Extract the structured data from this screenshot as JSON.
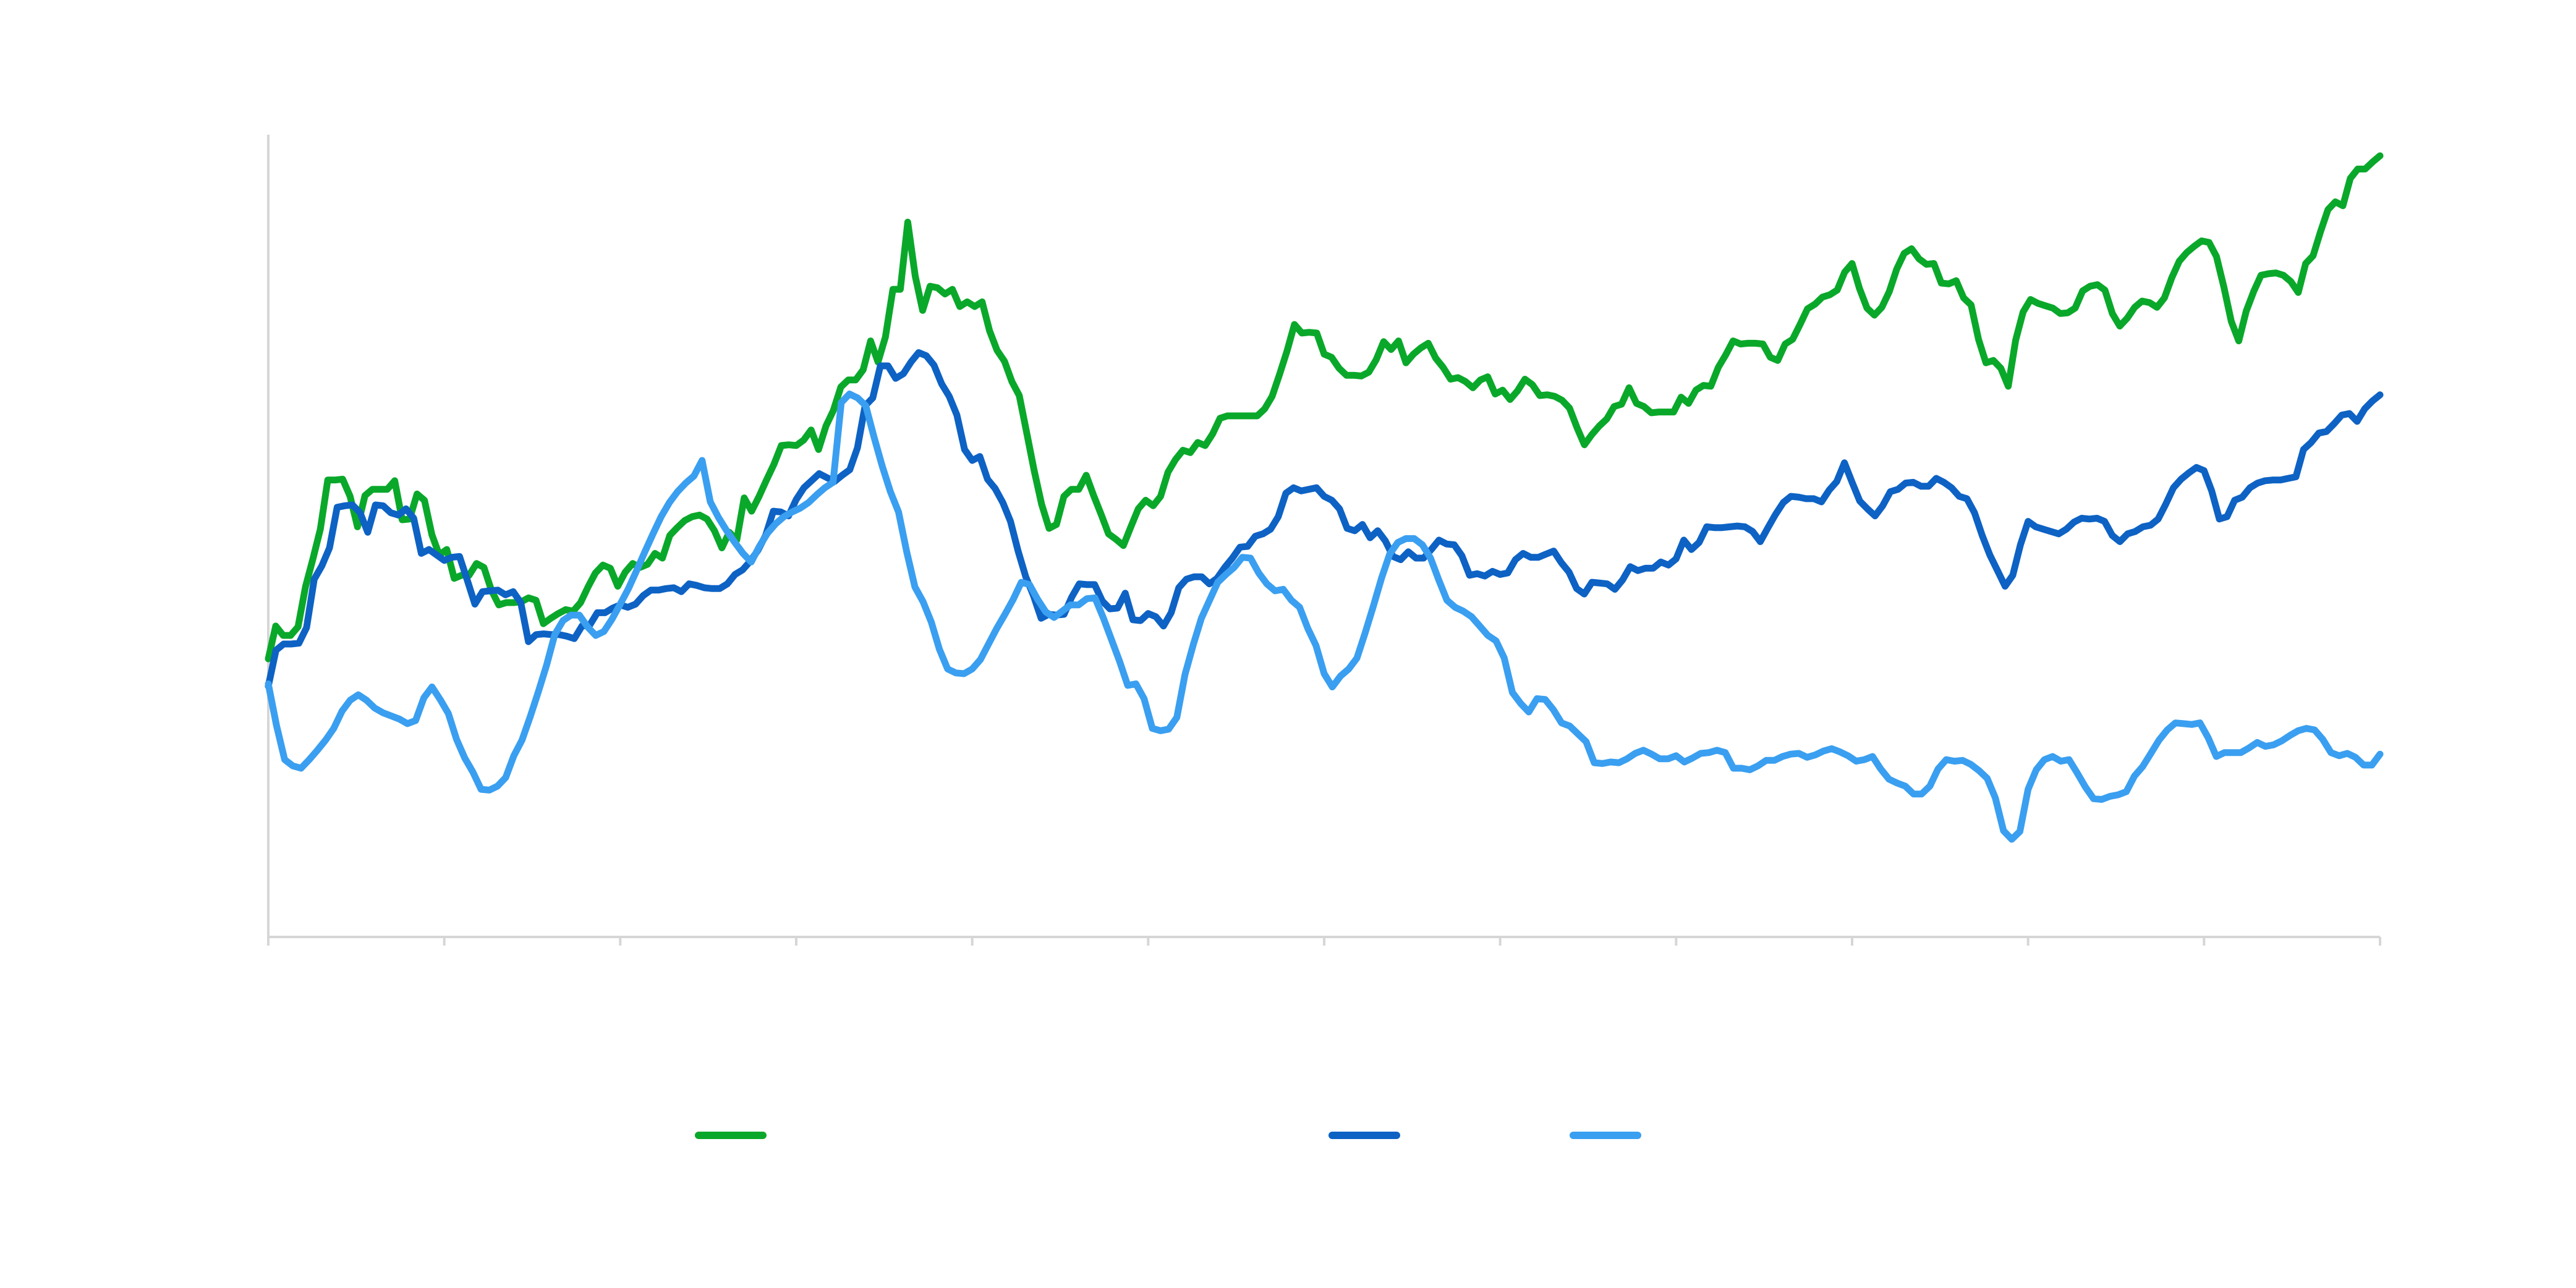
{
  "chart_data": {
    "type": "line",
    "title": "",
    "xlabel": "",
    "ylabel": "",
    "ylim": [
      0,
      100
    ],
    "grid": false,
    "legend_position": "bottom",
    "x_ticks": 12,
    "series": [
      {
        "name": "",
        "color": "#0aa82a",
        "values": [
          35.6,
          39.8,
          38.6,
          38.6,
          39.7,
          44.8,
          48.4,
          52.2,
          58.5,
          58.5,
          58.6,
          56.4,
          52.5,
          56.5,
          57.3,
          57.3,
          57.3,
          58.4,
          53.4,
          53.5,
          56.7,
          55.9,
          51.5,
          48.9,
          49.6,
          45.9,
          46.3,
          46.3,
          47.8,
          47.3,
          44.4,
          42.5,
          42.8,
          42.8,
          42.9,
          43.4,
          43.1,
          40.1,
          40.8,
          41.4,
          41.9,
          41.7,
          42.8,
          44.8,
          46.6,
          47.6,
          47.2,
          44.9,
          46.7,
          47.8,
          47.3,
          47.7,
          49.1,
          48.5,
          51.4,
          52.4,
          53.3,
          53.8,
          54.0,
          53.5,
          52.0,
          49.8,
          51.8,
          50.8,
          56.2,
          54.5,
          56.4,
          58.5,
          60.5,
          62.9,
          63.0,
          62.9,
          63.6,
          64.9,
          62.4,
          65.4,
          67.4,
          70.4,
          71.3,
          71.3,
          72.6,
          76.3,
          73.6,
          76.8,
          82.9,
          82.9,
          91.5,
          84.6,
          80.2,
          83.3,
          83.1,
          82.3,
          82.9,
          80.7,
          81.3,
          80.7,
          81.3,
          77.6,
          75.1,
          73.7,
          71.1,
          69.3,
          64.5,
          59.7,
          55.4,
          52.3,
          52.8,
          56.4,
          57.3,
          57.3,
          59.1,
          56.5,
          54.1,
          51.6,
          50.9,
          50.1,
          52.5,
          54.8,
          55.9,
          55.2,
          56.4,
          59.5,
          61.1,
          62.3,
          62.0,
          63.3,
          62.9,
          64.4,
          66.4,
          66.7,
          66.7,
          66.7,
          66.7,
          66.7,
          67.6,
          69.2,
          72.0,
          75.0,
          78.4,
          77.3,
          77.4,
          77.3,
          74.6,
          74.2,
          72.8,
          71.9,
          71.9,
          71.8,
          72.3,
          73.9,
          76.2,
          75.2,
          76.3,
          73.5,
          74.6,
          75.4,
          76.0,
          74.1,
          72.9,
          71.4,
          71.6,
          71.1,
          70.3,
          71.3,
          71.7,
          69.5,
          70.0,
          68.8,
          69.9,
          71.4,
          70.7,
          69.3,
          69.4,
          69.2,
          68.7,
          67.7,
          65.2,
          63.0,
          64.3,
          65.4,
          66.3,
          67.9,
          68.2,
          70.3,
          68.3,
          67.9,
          67.1,
          67.2,
          67.2,
          67.2,
          69.1,
          68.3,
          70.0,
          70.6,
          70.5,
          72.9,
          74.5,
          76.3,
          75.9,
          76.0,
          76.0,
          75.9,
          74.2,
          73.8,
          75.9,
          76.5,
          78.4,
          80.4,
          81.0,
          81.9,
          82.2,
          82.8,
          85.1,
          86.2,
          83.0,
          80.5,
          79.6,
          80.6,
          82.6,
          85.5,
          87.5,
          88.1,
          86.8,
          86.1,
          86.2,
          83.7,
          83.6,
          84.0,
          81.8,
          80.9,
          76.5,
          73.5,
          73.8,
          72.8,
          70.5,
          76.4,
          80.0,
          81.6,
          81.1,
          80.8,
          80.5,
          79.8,
          79.9,
          80.5,
          82.7,
          83.3,
          83.5,
          82.8,
          79.8,
          78.2,
          79.2,
          80.6,
          81.4,
          81.2,
          80.6,
          81.8,
          84.4,
          86.5,
          87.6,
          88.4,
          89.1,
          88.9,
          87.1,
          83.2,
          78.8,
          76.3,
          80.1,
          82.6,
          84.7,
          84.9,
          85.0,
          84.7,
          83.9,
          82.5,
          86.2,
          87.2,
          90.3,
          93.1,
          94.1,
          93.6,
          97.1,
          98.3,
          98.3,
          99.2,
          100.0
        ]
      },
      {
        "name": "",
        "color": "#0d62c4",
        "values": [
          32.1,
          36.7,
          37.5,
          37.5,
          37.6,
          39.6,
          45.8,
          47.5,
          49.8,
          55.0,
          55.2,
          55.3,
          54.3,
          51.8,
          55.3,
          55.2,
          54.3,
          54.0,
          54.8,
          53.6,
          49.1,
          49.6,
          48.9,
          48.2,
          48.6,
          48.7,
          45.7,
          42.6,
          44.2,
          44.3,
          44.4,
          43.8,
          44.2,
          42.8,
          37.8,
          38.7,
          38.8,
          38.7,
          38.7,
          38.5,
          38.2,
          39.8,
          39.9,
          41.5,
          41.5,
          42.1,
          42.5,
          42.2,
          42.6,
          43.7,
          44.4,
          44.4,
          44.6,
          44.7,
          44.2,
          45.2,
          45.0,
          44.7,
          44.6,
          44.6,
          45.2,
          46.4,
          47.0,
          48.1,
          49.5,
          51.4,
          54.5,
          54.4,
          53.9,
          56.0,
          57.5,
          58.4,
          59.3,
          58.8,
          58.3,
          59.1,
          59.8,
          62.6,
          68.0,
          69.0,
          73.1,
          73.1,
          71.5,
          72.1,
          73.6,
          74.8,
          74.4,
          73.2,
          70.8,
          69.2,
          66.8,
          62.4,
          61.0,
          61.5,
          58.6,
          57.4,
          55.6,
          53.2,
          49.4,
          46.1,
          43.7,
          40.8,
          41.3,
          41.2,
          41.3,
          43.5,
          45.2,
          45.1,
          45.1,
          43.0,
          42.0,
          42.1,
          44.0,
          40.6,
          40.5,
          41.4,
          41.0,
          39.8,
          41.5,
          44.7,
          45.8,
          46.1,
          46.1,
          45.2,
          45.9,
          47.3,
          48.5,
          49.9,
          50.0,
          51.3,
          51.6,
          52.2,
          53.8,
          56.8,
          57.5,
          57.1,
          57.3,
          57.5,
          56.4,
          55.9,
          54.8,
          52.3,
          52.0,
          52.8,
          51.1,
          52.0,
          50.7,
          48.7,
          48.3,
          49.3,
          48.5,
          48.5,
          49.6,
          50.8,
          50.3,
          50.2,
          48.8,
          46.3,
          46.5,
          46.2,
          46.8,
          46.4,
          46.6,
          48.3,
          49.1,
          48.6,
          48.6,
          49.0,
          49.4,
          47.9,
          46.7,
          44.6,
          43.9,
          45.4,
          45.3,
          45.2,
          44.5,
          45.7,
          47.4,
          46.9,
          47.2,
          47.2,
          48.0,
          47.6,
          48.4,
          50.8,
          49.6,
          50.5,
          52.5,
          52.4,
          52.4,
          52.5,
          52.6,
          52.5,
          51.9,
          50.6,
          52.4,
          54.1,
          55.6,
          56.4,
          56.3,
          56.1,
          56.1,
          55.7,
          57.2,
          58.3,
          60.7,
          58.2,
          55.8,
          54.8,
          53.9,
          55.2,
          57.0,
          57.3,
          58.1,
          58.2,
          57.7,
          57.7,
          58.7,
          58.2,
          57.5,
          56.4,
          56.1,
          54.3,
          51.4,
          48.9,
          46.9,
          44.9,
          46.3,
          50.2,
          53.2,
          52.5,
          52.2,
          51.9,
          51.6,
          52.2,
          53.1,
          53.6,
          53.5,
          53.6,
          53.2,
          51.4,
          50.6,
          51.6,
          51.9,
          52.5,
          52.7,
          53.5,
          55.4,
          57.5,
          58.6,
          59.4,
          60.1,
          59.7,
          57.1,
          53.5,
          53.8,
          55.9,
          56.3,
          57.5,
          58.1,
          58.4,
          58.5,
          58.5,
          58.7,
          58.9,
          62.4,
          63.3,
          64.5,
          64.7,
          65.7,
          66.8,
          67.0,
          66.0,
          67.6,
          68.6,
          69.4
        ]
      },
      {
        "name": "",
        "color": "#3a9ff0",
        "values": [
          32.4,
          27.1,
          22.7,
          21.9,
          21.6,
          22.7,
          23.9,
          25.2,
          26.7,
          28.9,
          30.3,
          31.0,
          30.3,
          29.3,
          28.7,
          28.3,
          27.9,
          27.3,
          27.7,
          30.6,
          32.0,
          30.4,
          28.6,
          25.3,
          22.9,
          21.1,
          18.9,
          18.8,
          19.3,
          20.4,
          23.2,
          25.2,
          28.2,
          31.4,
          34.8,
          38.7,
          40.5,
          41.2,
          41.2,
          39.7,
          38.6,
          39.1,
          40.7,
          42.6,
          44.6,
          46.9,
          49.3,
          51.6,
          53.8,
          55.6,
          57.0,
          58.1,
          59.0,
          61.0,
          55.7,
          53.7,
          52.0,
          50.5,
          49.1,
          48.0,
          50.0,
          51.7,
          52.9,
          53.8,
          54.4,
          54.9,
          55.6,
          56.6,
          57.5,
          58.2,
          68.4,
          69.5,
          69.0,
          68.0,
          64.0,
          60.3,
          57.0,
          54.4,
          49.3,
          44.8,
          42.9,
          40.3,
          36.8,
          34.3,
          33.8,
          33.7,
          34.3,
          35.5,
          37.5,
          39.5,
          41.3,
          43.2,
          45.4,
          45.1,
          43.2,
          41.6,
          40.9,
          41.7,
          42.5,
          42.5,
          43.3,
          43.4,
          40.9,
          38.1,
          35.3,
          32.2,
          32.4,
          30.5,
          26.7,
          26.4,
          26.6,
          28.1,
          33.6,
          37.4,
          40.8,
          43.1,
          45.4,
          46.4,
          47.3,
          48.6,
          48.5,
          46.6,
          45.2,
          44.3,
          44.5,
          43.1,
          42.2,
          39.5,
          37.3,
          33.7,
          32.0,
          33.4,
          34.3,
          35.7,
          38.9,
          42.3,
          45.9,
          49.0,
          50.5,
          51.0,
          51.0,
          50.2,
          48.5,
          45.7,
          43.1,
          42.2,
          41.7,
          41.0,
          39.8,
          38.6,
          37.9,
          35.7,
          31.3,
          29.9,
          28.8,
          30.5,
          30.4,
          29.1,
          27.4,
          27.0,
          26.0,
          25.0,
          22.3,
          22.2,
          22.4,
          22.3,
          22.8,
          23.5,
          23.9,
          23.4,
          22.8,
          22.8,
          23.2,
          22.4,
          22.9,
          23.5,
          23.6,
          23.9,
          23.6,
          21.6,
          21.6,
          21.4,
          21.9,
          22.6,
          22.6,
          23.1,
          23.4,
          23.5,
          23.0,
          23.3,
          23.8,
          24.1,
          23.7,
          23.2,
          22.5,
          22.7,
          23.1,
          21.5,
          20.2,
          19.7,
          19.3,
          18.3,
          18.3,
          19.3,
          21.5,
          22.7,
          22.5,
          22.6,
          22.1,
          21.3,
          20.3,
          17.8,
          13.6,
          12.5,
          13.5,
          18.9,
          21.4,
          22.7,
          23.1,
          22.5,
          22.7,
          21.0,
          19.2,
          17.7,
          17.6,
          18.0,
          18.2,
          18.6,
          20.6,
          21.8,
          23.5,
          25.2,
          26.5,
          27.4,
          27.3,
          27.2,
          27.4,
          25.5,
          23.1,
          23.6,
          23.6,
          23.6,
          24.2,
          24.9,
          24.4,
          24.6,
          25.1,
          25.8,
          26.4,
          26.7,
          26.5,
          25.3,
          23.6,
          23.2,
          23.5,
          23.0,
          22.0,
          22.0,
          23.4
        ]
      }
    ]
  }
}
